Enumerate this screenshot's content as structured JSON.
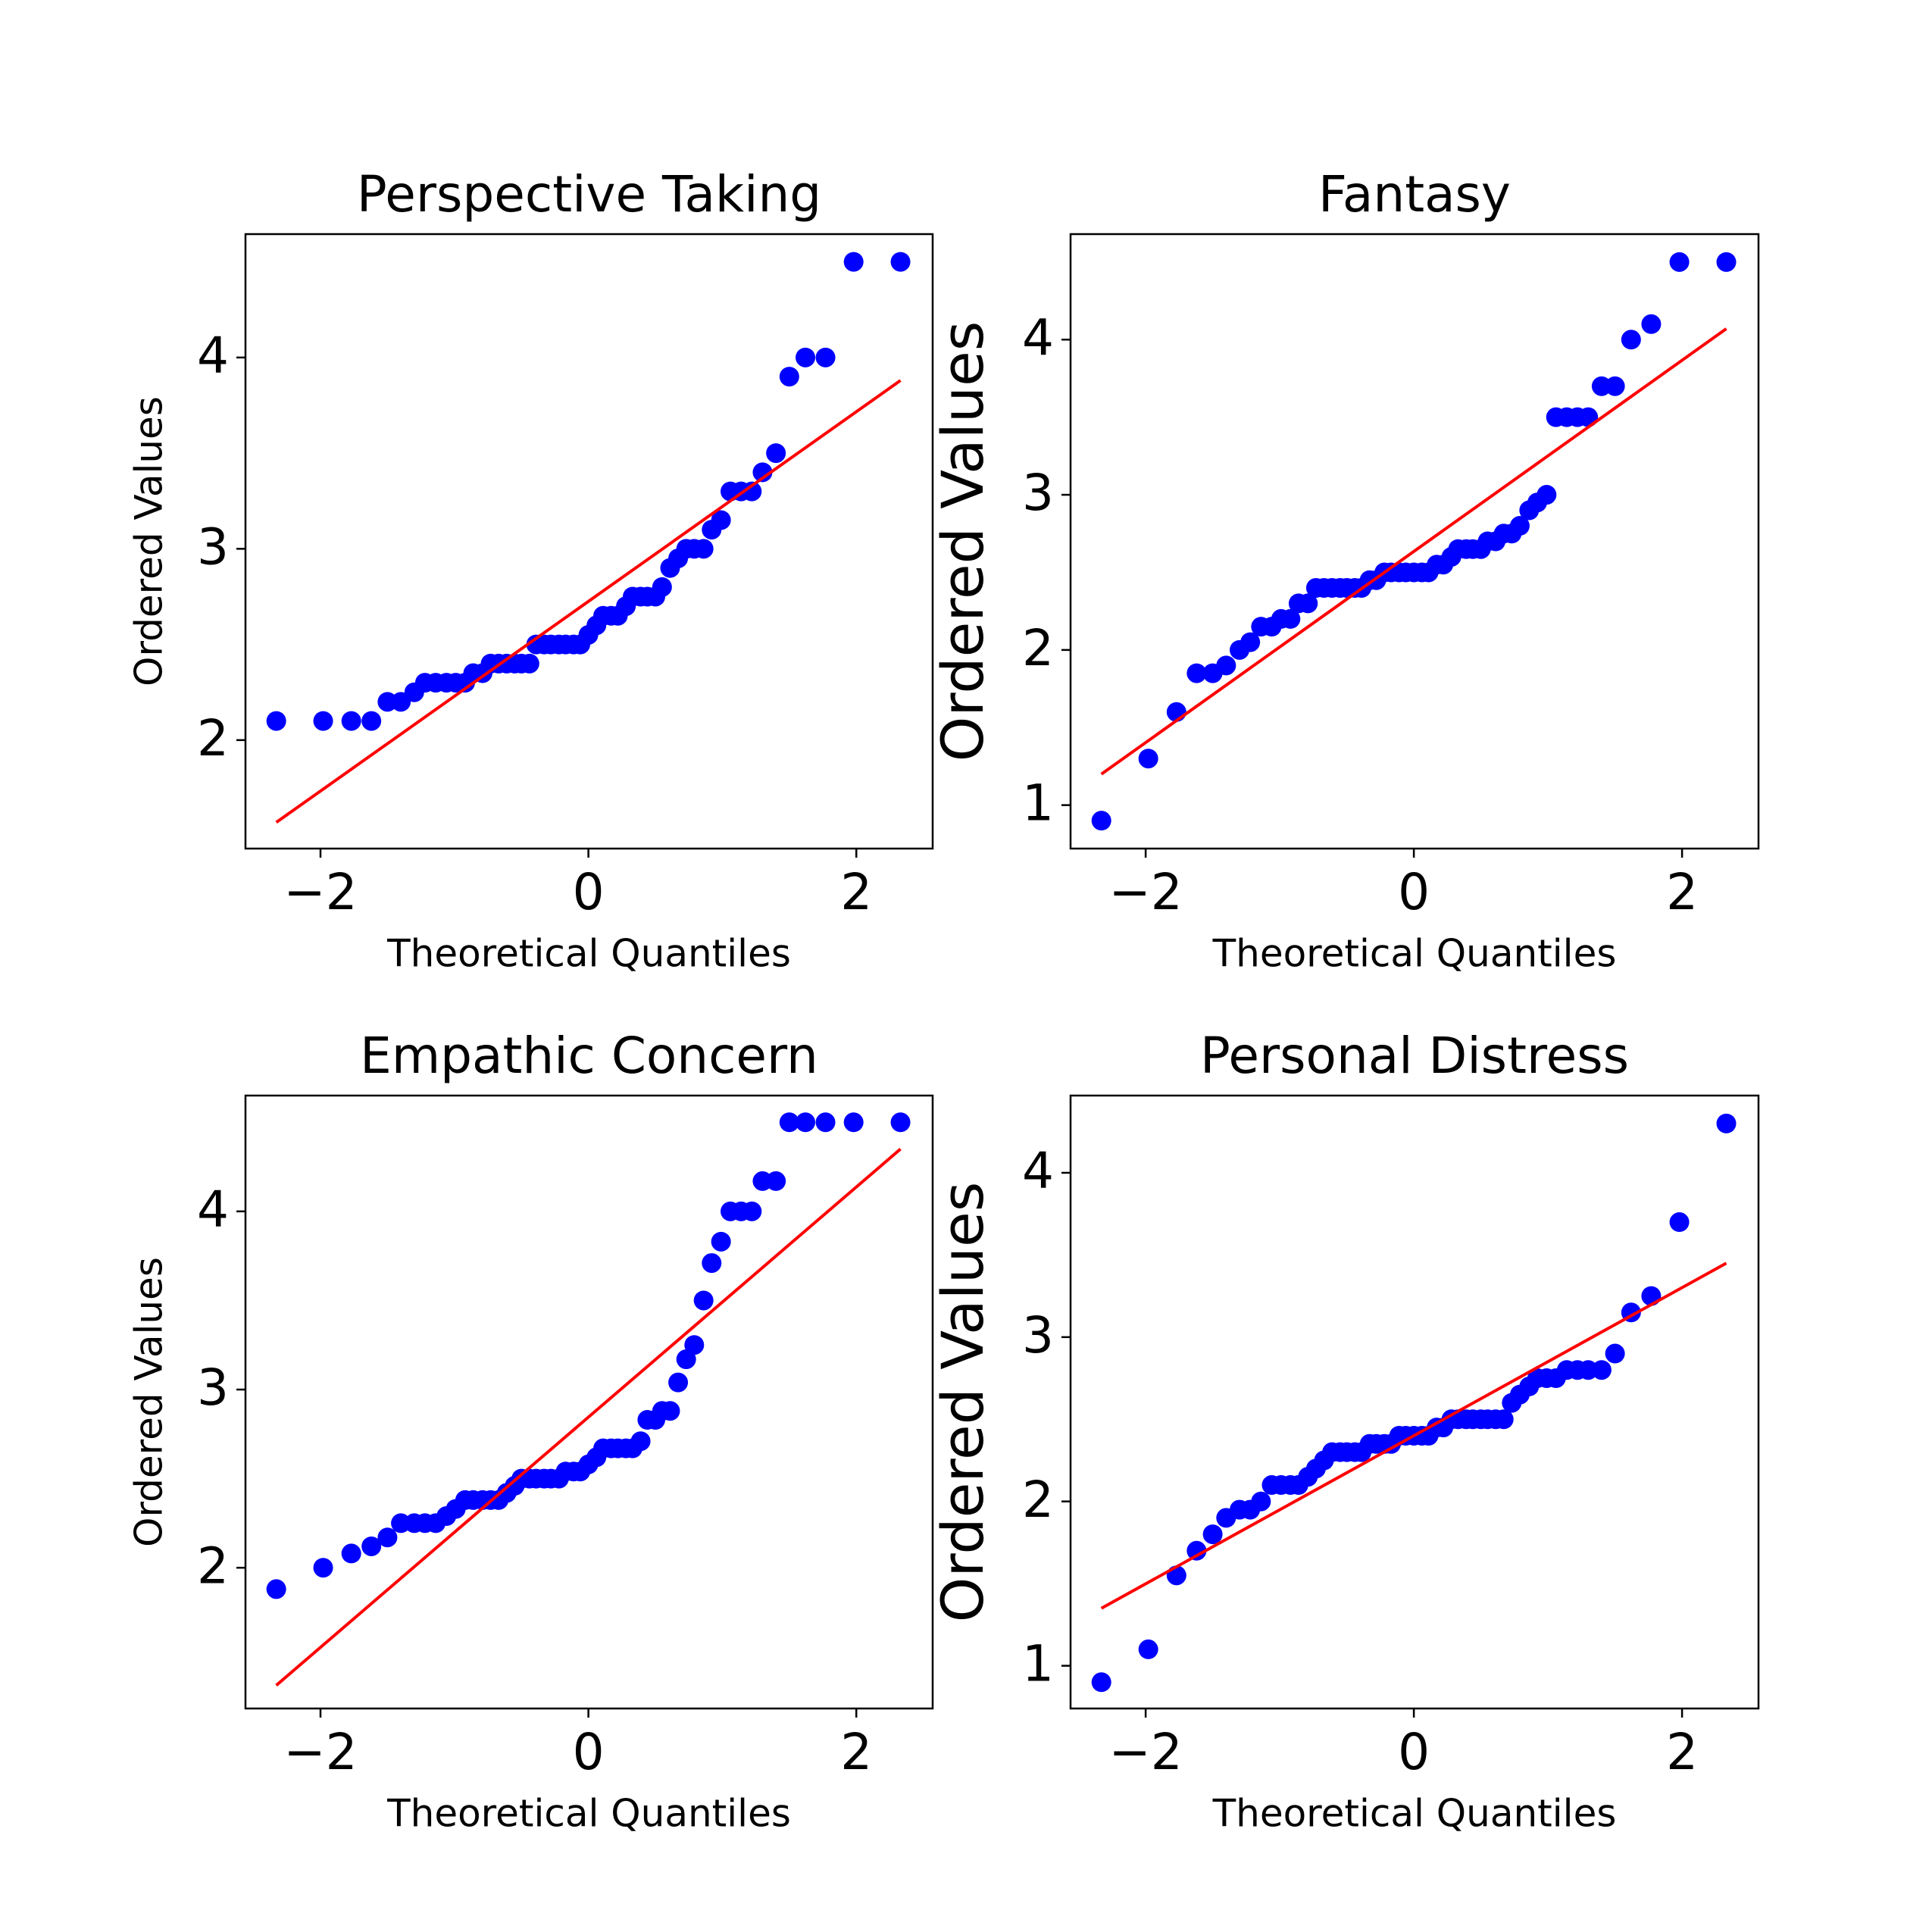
{
  "chart_data": [
    {
      "type": "scatter",
      "title": "Perspective Taking",
      "x_label": "Theoretical Quantiles",
      "y_label": "Ordered Values",
      "xlim": [
        -2.56,
        2.57
      ],
      "ylim": [
        1.433,
        4.645
      ],
      "xticks": [
        {
          "value": -2,
          "label": "−2"
        },
        0,
        2
      ],
      "yticks": [
        2,
        3,
        4
      ],
      "color": "#0000ff",
      "x": [
        -2.33,
        -1.98,
        -1.77,
        -1.62,
        -1.5,
        -1.4,
        -1.3,
        -1.22,
        -1.14,
        -1.06,
        -0.99,
        -0.92,
        -0.86,
        -0.79,
        -0.73,
        -0.67,
        -0.61,
        -0.55,
        -0.5,
        -0.44,
        -0.39,
        -0.33,
        -0.28,
        -0.22,
        -0.17,
        -0.11,
        -0.06,
        0,
        0.06,
        0.11,
        0.17,
        0.22,
        0.28,
        0.33,
        0.39,
        0.44,
        0.5,
        0.55,
        0.61,
        0.67,
        0.73,
        0.79,
        0.86,
        0.92,
        0.99,
        1.06,
        1.14,
        1.22,
        1.3,
        1.4,
        1.5,
        1.62,
        1.77,
        1.98,
        2.33
      ],
      "values": [
        2.1,
        2.1,
        2.1,
        2.1,
        2.2,
        2.2,
        2.25,
        2.3,
        2.3,
        2.3,
        2.3,
        2.3,
        2.35,
        2.35,
        2.4,
        2.4,
        2.4,
        2.4,
        2.4,
        2.4,
        2.5,
        2.5,
        2.5,
        2.5,
        2.5,
        2.5,
        2.5,
        2.55,
        2.6,
        2.65,
        2.65,
        2.65,
        2.7,
        2.75,
        2.75,
        2.75,
        2.75,
        2.8,
        2.9,
        2.95,
        3.0,
        3.0,
        3.0,
        3.1,
        3.15,
        3.3,
        3.3,
        3.3,
        3.4,
        3.5,
        3.9,
        4.0,
        4.0,
        4.5,
        4.5
      ],
      "fit": {
        "color": "#ff0000",
        "x": [
          -2.33,
          2.33
        ],
        "values": [
          1.57,
          3.88
        ]
      }
    },
    {
      "type": "scatter",
      "title": "Fantasy",
      "x_label": "Theoretical Quantiles",
      "y_label": "Ordered Values",
      "xlim": [
        -2.56,
        2.57
      ],
      "ylim": [
        0.72,
        4.68
      ],
      "xticks": [
        {
          "value": -2,
          "label": "−2"
        },
        0,
        2
      ],
      "yticks": [
        1,
        2,
        3,
        4
      ],
      "color": "#0000ff",
      "x": [
        -2.33,
        -1.98,
        -1.77,
        -1.62,
        -1.5,
        -1.4,
        -1.3,
        -1.22,
        -1.14,
        -1.06,
        -0.99,
        -0.92,
        -0.86,
        -0.79,
        -0.73,
        -0.67,
        -0.61,
        -0.55,
        -0.5,
        -0.44,
        -0.39,
        -0.33,
        -0.28,
        -0.22,
        -0.17,
        -0.11,
        -0.06,
        0,
        0.06,
        0.11,
        0.17,
        0.22,
        0.28,
        0.33,
        0.39,
        0.44,
        0.5,
        0.55,
        0.61,
        0.67,
        0.73,
        0.79,
        0.86,
        0.92,
        0.99,
        1.06,
        1.14,
        1.22,
        1.3,
        1.4,
        1.5,
        1.62,
        1.77,
        1.98,
        2.33
      ],
      "values": [
        0.9,
        1.3,
        1.6,
        1.85,
        1.85,
        1.9,
        2.0,
        2.05,
        2.15,
        2.15,
        2.2,
        2.2,
        2.3,
        2.3,
        2.4,
        2.4,
        2.4,
        2.4,
        2.4,
        2.4,
        2.4,
        2.45,
        2.45,
        2.5,
        2.5,
        2.5,
        2.5,
        2.5,
        2.5,
        2.5,
        2.55,
        2.55,
        2.6,
        2.65,
        2.65,
        2.65,
        2.65,
        2.7,
        2.7,
        2.75,
        2.75,
        2.8,
        2.9,
        2.95,
        3.0,
        3.5,
        3.5,
        3.5,
        3.5,
        3.7,
        3.7,
        4.0,
        4.1,
        4.5,
        4.5
      ],
      "fit": {
        "color": "#ff0000",
        "x": [
          -2.33,
          2.33
        ],
        "values": [
          1.2,
          4.07
        ]
      }
    },
    {
      "type": "scatter",
      "title": "Empathic Concern",
      "x_label": "Theoretical Quantiles",
      "y_label": "Ordered Values",
      "xlim": [
        -2.56,
        2.57
      ],
      "ylim": [
        1.21,
        4.65
      ],
      "xticks": [
        {
          "value": -2,
          "label": "−2"
        },
        0,
        2
      ],
      "yticks": [
        2,
        3,
        4
      ],
      "color": "#0000ff",
      "x": [
        -2.33,
        -1.98,
        -1.77,
        -1.62,
        -1.5,
        -1.4,
        -1.3,
        -1.22,
        -1.14,
        -1.06,
        -0.99,
        -0.92,
        -0.86,
        -0.79,
        -0.73,
        -0.67,
        -0.61,
        -0.55,
        -0.5,
        -0.44,
        -0.39,
        -0.33,
        -0.28,
        -0.22,
        -0.17,
        -0.11,
        -0.06,
        0,
        0.06,
        0.11,
        0.17,
        0.22,
        0.28,
        0.33,
        0.39,
        0.44,
        0.5,
        0.55,
        0.61,
        0.67,
        0.73,
        0.79,
        0.86,
        0.92,
        0.99,
        1.06,
        1.14,
        1.22,
        1.3,
        1.4,
        1.5,
        1.62,
        1.77,
        1.98,
        2.33
      ],
      "values": [
        1.88,
        2.0,
        2.08,
        2.12,
        2.17,
        2.25,
        2.25,
        2.25,
        2.25,
        2.29,
        2.33,
        2.38,
        2.38,
        2.38,
        2.38,
        2.38,
        2.42,
        2.46,
        2.5,
        2.5,
        2.5,
        2.5,
        2.5,
        2.5,
        2.54,
        2.54,
        2.54,
        2.58,
        2.62,
        2.67,
        2.67,
        2.67,
        2.67,
        2.67,
        2.71,
        2.83,
        2.83,
        2.88,
        2.88,
        3.04,
        3.17,
        3.25,
        3.5,
        3.71,
        3.83,
        4.0,
        4.0,
        4.0,
        4.17,
        4.17,
        4.5,
        4.5,
        4.5,
        4.5,
        4.5
      ],
      "fit": {
        "color": "#ff0000",
        "x": [
          -2.33,
          2.33
        ],
        "values": [
          1.34,
          4.35
        ]
      }
    },
    {
      "type": "scatter",
      "title": "Personal Distress",
      "x_label": "Theoretical Quantiles",
      "y_label": "Ordered Values",
      "xlim": [
        -2.56,
        2.57
      ],
      "ylim": [
        0.74,
        4.47
      ],
      "xticks": [
        {
          "value": -2,
          "label": "−2"
        },
        0,
        2
      ],
      "yticks": [
        1,
        2,
        3,
        4
      ],
      "color": "#0000ff",
      "x": [
        -2.33,
        -1.98,
        -1.77,
        -1.62,
        -1.5,
        -1.4,
        -1.3,
        -1.22,
        -1.14,
        -1.06,
        -0.99,
        -0.92,
        -0.86,
        -0.79,
        -0.73,
        -0.67,
        -0.61,
        -0.55,
        -0.5,
        -0.44,
        -0.39,
        -0.33,
        -0.28,
        -0.22,
        -0.17,
        -0.11,
        -0.06,
        0,
        0.06,
        0.11,
        0.17,
        0.22,
        0.28,
        0.33,
        0.39,
        0.44,
        0.5,
        0.55,
        0.61,
        0.67,
        0.73,
        0.79,
        0.86,
        0.92,
        0.99,
        1.06,
        1.14,
        1.22,
        1.3,
        1.4,
        1.5,
        1.62,
        1.77,
        1.98,
        2.33
      ],
      "values": [
        0.9,
        1.1,
        1.55,
        1.7,
        1.8,
        1.9,
        1.95,
        1.95,
        2.0,
        2.1,
        2.1,
        2.1,
        2.1,
        2.15,
        2.2,
        2.25,
        2.3,
        2.3,
        2.3,
        2.3,
        2.3,
        2.35,
        2.35,
        2.35,
        2.35,
        2.4,
        2.4,
        2.4,
        2.4,
        2.4,
        2.45,
        2.45,
        2.5,
        2.5,
        2.5,
        2.5,
        2.5,
        2.5,
        2.5,
        2.5,
        2.6,
        2.65,
        2.7,
        2.75,
        2.75,
        2.75,
        2.8,
        2.8,
        2.8,
        2.8,
        2.9,
        3.15,
        3.25,
        3.7,
        4.3
      ],
      "fit": {
        "color": "#ff0000",
        "x": [
          -2.33,
          2.33
        ],
        "values": [
          1.35,
          3.45
        ]
      }
    }
  ]
}
